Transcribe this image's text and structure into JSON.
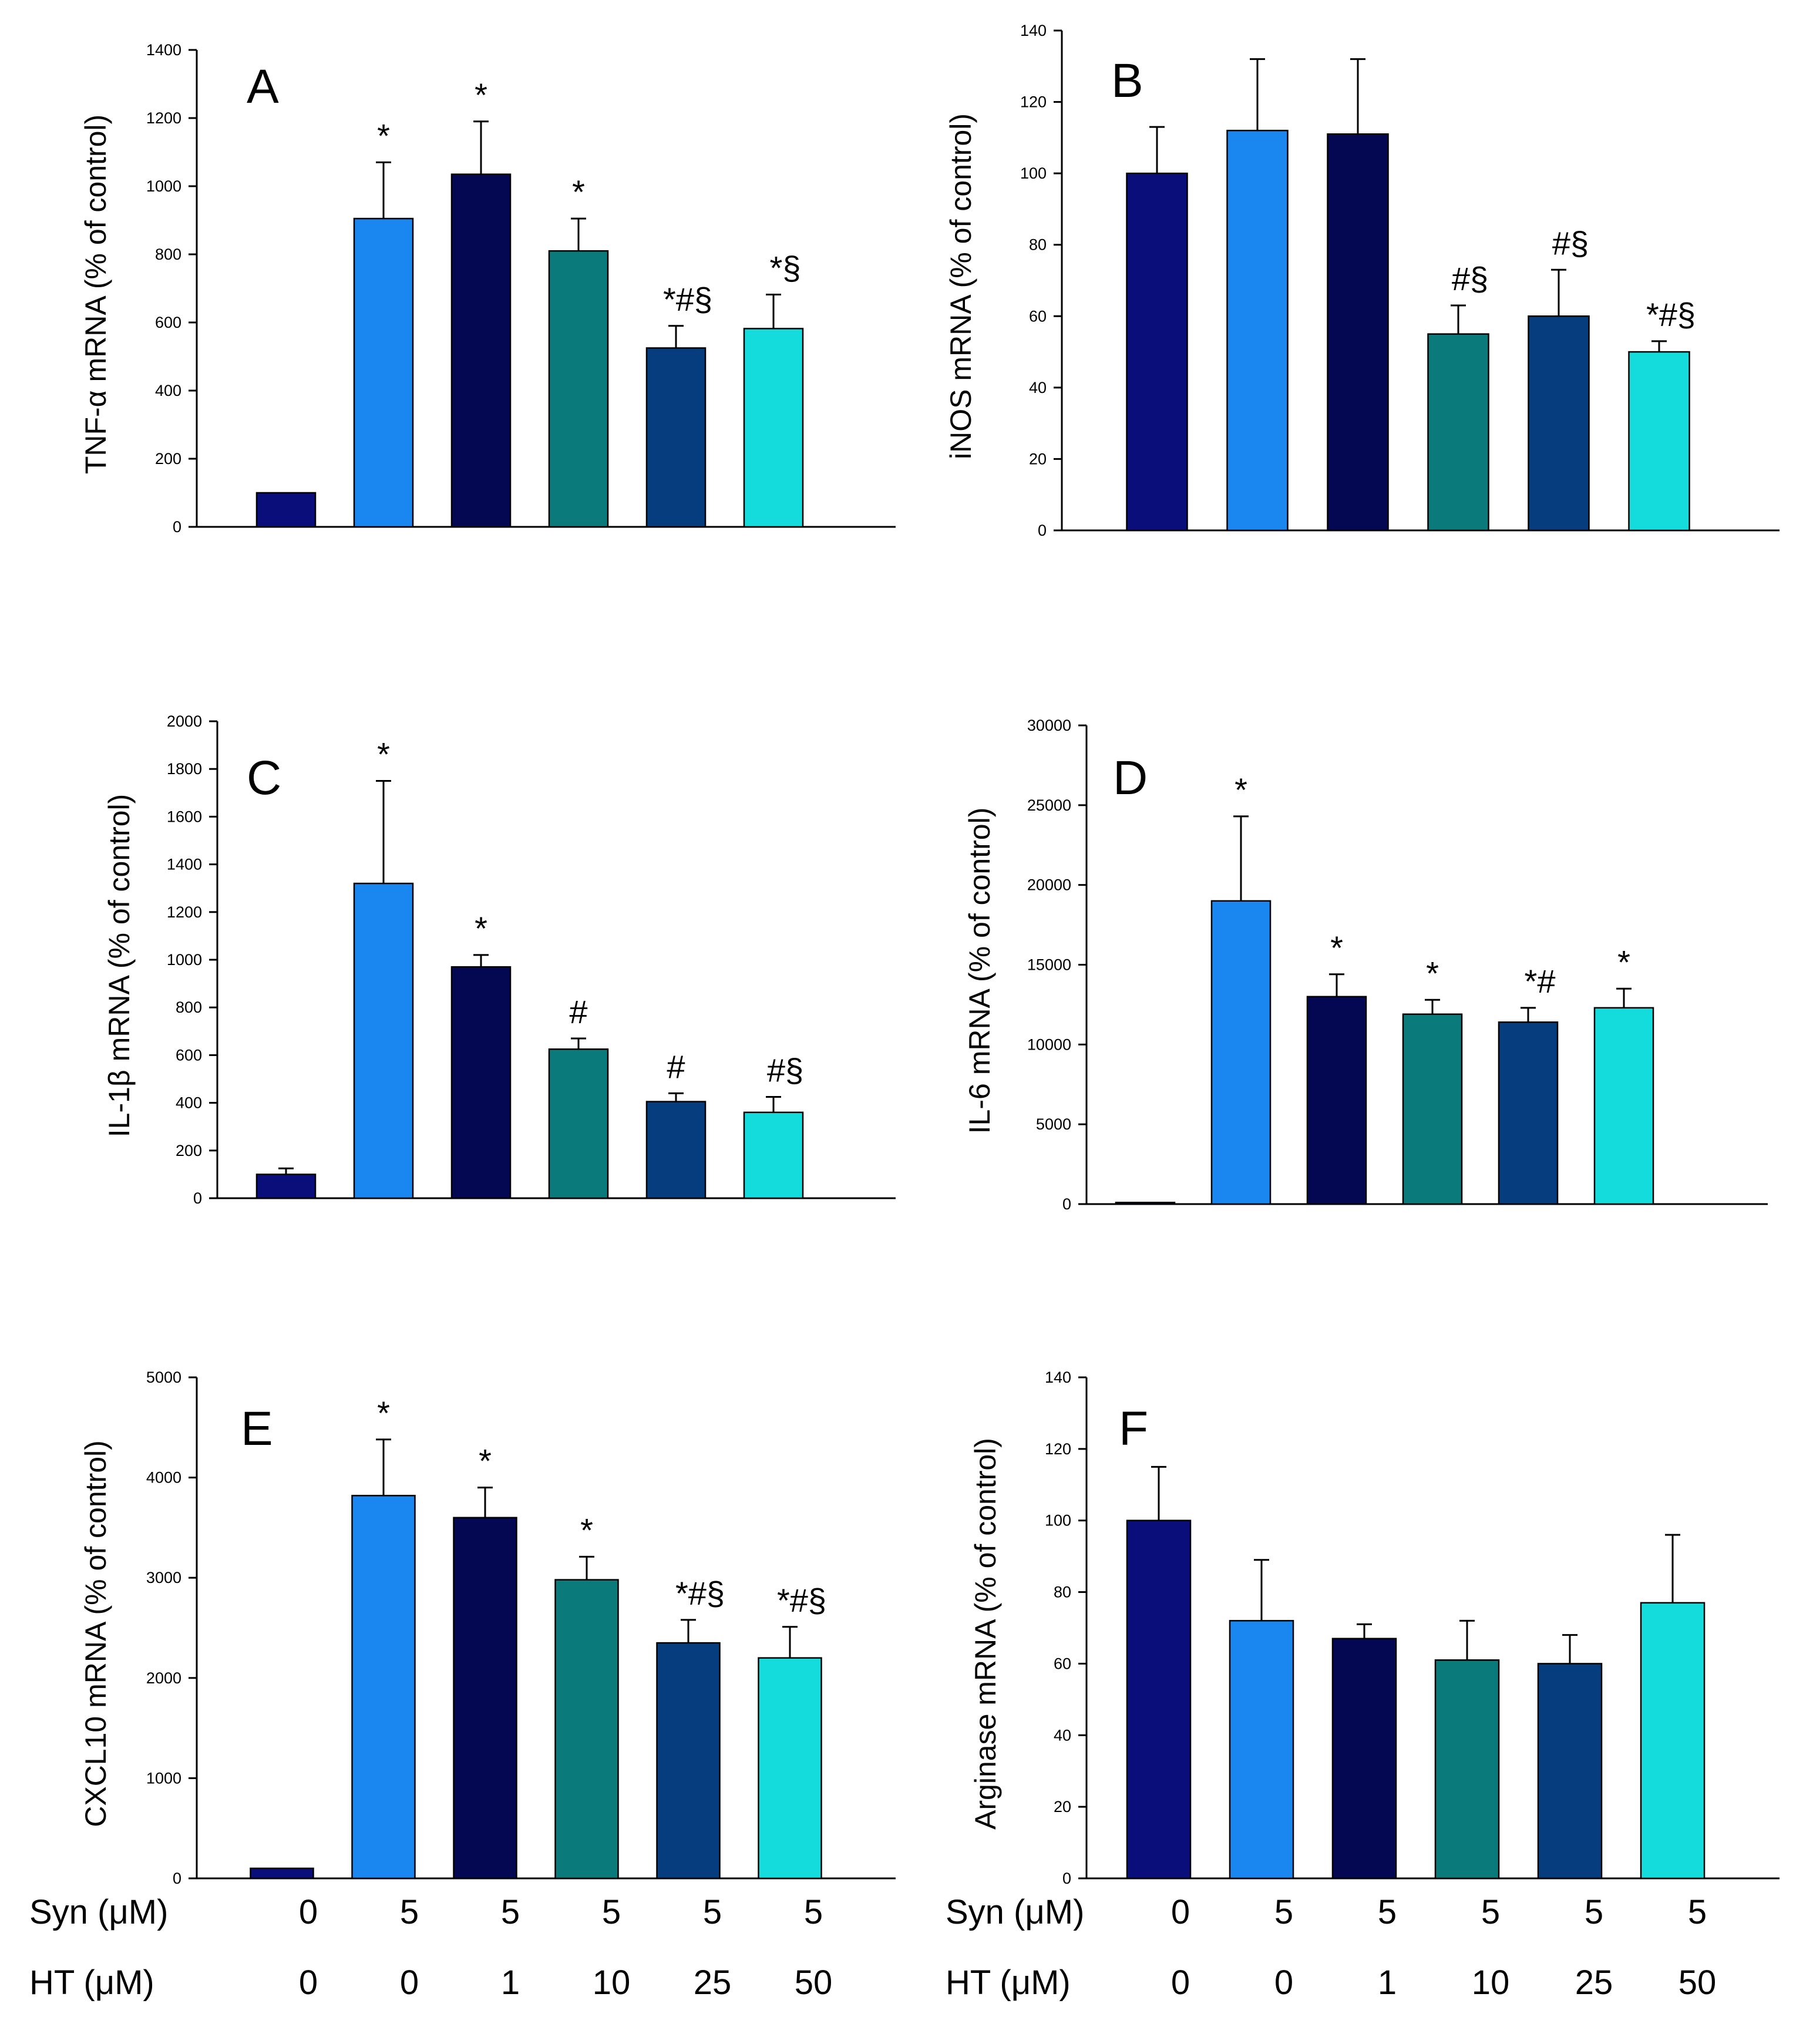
{
  "colors": {
    "group1": "#0a0e7a",
    "group2": "#1a86f0",
    "group3": "#040852",
    "group4": "#0a7a7a",
    "group5": "#063d7e",
    "group6": "#14dcdc"
  },
  "x_axis": {
    "syn_label": "Syn (μM)",
    "ht_label": "HT  (μM)",
    "syn_values": [
      "0",
      "5",
      "5",
      "5",
      "5",
      "5"
    ],
    "ht_values": [
      "0",
      "0",
      "1",
      "10",
      "25",
      "50"
    ]
  },
  "chart_data": [
    {
      "type": "bar",
      "panel": "A",
      "ylabel": "TNF-α mRNA (% of control)",
      "ylim": [
        0,
        1400
      ],
      "yticks": [
        "0",
        "200",
        "400",
        "600",
        "800",
        "1000",
        "1200",
        "1400"
      ],
      "values": [
        100,
        905,
        1035,
        810,
        525,
        582
      ],
      "errors": [
        5,
        165,
        155,
        95,
        65,
        100
      ],
      "annotations": [
        "",
        "*",
        "*",
        "*",
        "*#§",
        "*§"
      ]
    },
    {
      "type": "bar",
      "panel": "B",
      "ylabel": "iNOS mRNA (% of control)",
      "ylim": [
        0,
        140
      ],
      "yticks": [
        "0",
        "20",
        "40",
        "60",
        "80",
        "100",
        "120",
        "140"
      ],
      "values": [
        100,
        112,
        111,
        55,
        60,
        50
      ],
      "errors": [
        13,
        20,
        21,
        8,
        13,
        3
      ],
      "annotations": [
        "",
        "",
        "",
        "#§",
        "#§",
        "*#§"
      ]
    },
    {
      "type": "bar",
      "panel": "C",
      "ylabel": "IL-1β mRNA (% of control)",
      "ylim": [
        0,
        2000
      ],
      "yticks": [
        "0",
        "200",
        "400",
        "600",
        "800",
        "1000",
        "1200",
        "1400",
        "1600",
        "1800",
        "2000"
      ],
      "values": [
        100,
        1320,
        970,
        625,
        405,
        360
      ],
      "errors": [
        25,
        430,
        50,
        45,
        35,
        65
      ],
      "annotations": [
        "",
        "*",
        "*",
        "#",
        "#",
        "#§"
      ]
    },
    {
      "type": "bar",
      "panel": "D",
      "ylabel": "IL-6 mRNA (% of control)",
      "ylim": [
        0,
        30000
      ],
      "yticks": [
        "0",
        "5000",
        "10000",
        "15000",
        "20000",
        "25000",
        "30000"
      ],
      "values": [
        100,
        19000,
        13000,
        11900,
        11400,
        12300
      ],
      "errors": [
        20,
        5300,
        1400,
        900,
        900,
        1200
      ],
      "annotations": [
        "",
        "*",
        "*",
        "*",
        "*#",
        "*"
      ]
    },
    {
      "type": "bar",
      "panel": "E",
      "ylabel": "CXCL10 mRNA (% of control)",
      "ylim": [
        0,
        5000
      ],
      "yticks": [
        "0",
        "1000",
        "2000",
        "3000",
        "4000",
        "5000"
      ],
      "values": [
        100,
        3820,
        3600,
        2980,
        2350,
        2200
      ],
      "errors": [
        15,
        560,
        300,
        230,
        230,
        310
      ],
      "annotations": [
        "",
        "*",
        "*",
        "*",
        "*#§",
        "*#§"
      ]
    },
    {
      "type": "bar",
      "panel": "F",
      "ylabel": "Arginase mRNA (% of control)",
      "ylim": [
        0,
        140
      ],
      "yticks": [
        "0",
        "20",
        "40",
        "60",
        "80",
        "100",
        "120",
        "140"
      ],
      "values": [
        100,
        72,
        67,
        61,
        60,
        77
      ],
      "errors": [
        15,
        17,
        4,
        11,
        8,
        19
      ],
      "annotations": [
        "",
        "",
        "",
        "",
        "",
        ""
      ]
    }
  ]
}
